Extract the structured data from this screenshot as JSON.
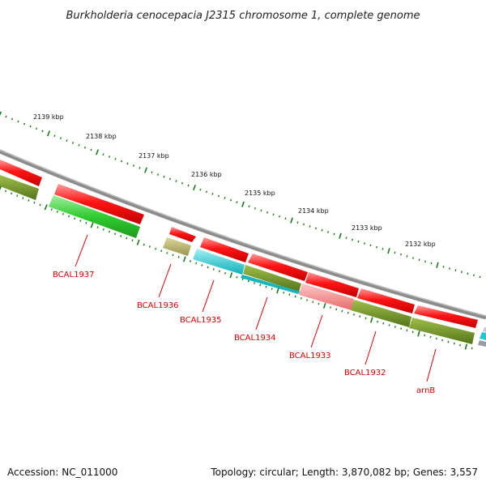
{
  "title": "Burkholderia cenocepacia J2315 chromosome 1, complete genome",
  "footer": {
    "accession": "Accession: NC_011000",
    "summary": "Topology: circular; Length: 3,870,082 bp; Genes: 3,557"
  },
  "scale_labels": [
    "2139 kbp",
    "2138 kbp",
    "2137 kbp",
    "2136 kbp",
    "2135 kbp",
    "2134 kbp",
    "2133 kbp",
    "2132 kbp"
  ],
  "gene_labels": [
    "BCAL1937",
    "BCAL1936",
    "BCAL1935",
    "BCAL1934",
    "BCAL1933",
    "BCAL1932",
    "arnB"
  ],
  "colors": {
    "backbone": "#808080",
    "cds_red": "#ff1010",
    "cds_pink": "#f08080",
    "olive": "#6b8e23",
    "green": "#33cc33",
    "khaki": "#b5b06a",
    "cyan": "#20c8d0",
    "ticks": "#1a7a1a",
    "label": "#dd0000"
  }
}
